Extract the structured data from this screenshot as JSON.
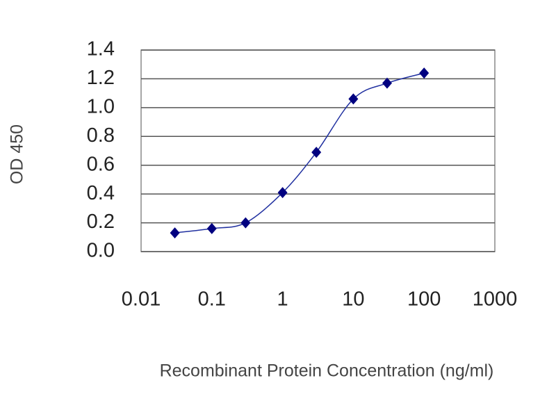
{
  "chart_data": {
    "type": "scatter",
    "x_label": "Recombinant Protein Concentration (ng/ml)",
    "y_label": "OD 450",
    "log_x": true,
    "grid": true,
    "color": "#000080",
    "x": [
      0.03,
      0.1,
      0.3,
      1,
      3,
      10,
      30,
      100
    ],
    "values": [
      0.13,
      0.16,
      0.2,
      0.41,
      0.69,
      1.06,
      1.17,
      1.24
    ],
    "xlim": [
      0.01,
      1000
    ],
    "xticks": [
      0.01,
      0.1,
      1,
      10,
      100,
      1000
    ],
    "ylim": [
      0,
      1.4
    ],
    "yticks": [
      {
        "value": 0,
        "label": "0.0"
      },
      0.2,
      0.4,
      0.6,
      0.8,
      {
        "value": 1,
        "label": "1.0"
      },
      1.2,
      1.4
    ]
  }
}
